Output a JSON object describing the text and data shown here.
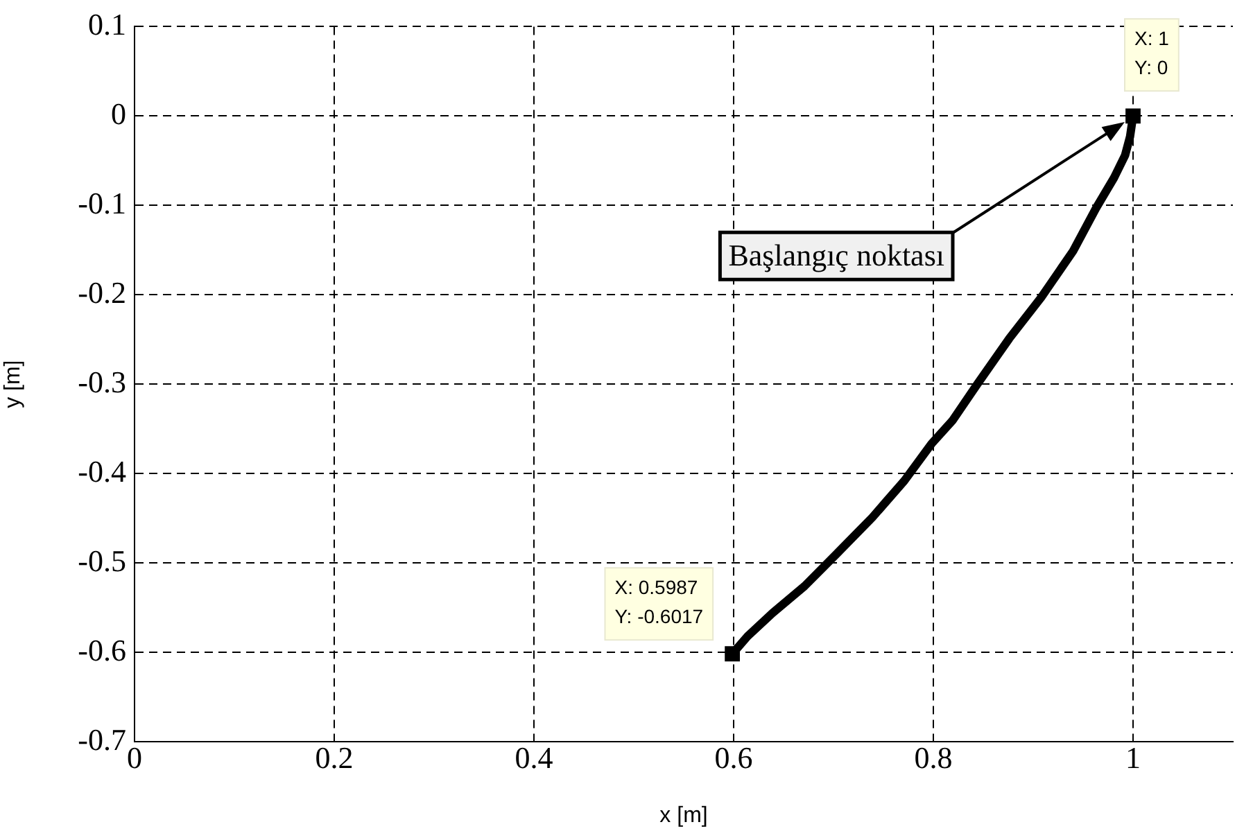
{
  "chart_data": {
    "type": "line",
    "xlabel": "x [m]",
    "ylabel": "y [m]",
    "xlim": [
      0,
      1.1
    ],
    "xticks": [
      0,
      0.2,
      0.4,
      0.6,
      0.8,
      1
    ],
    "ylim": [
      -0.7,
      0.1
    ],
    "yticks": [
      0.1,
      0,
      -0.1,
      -0.2,
      -0.3,
      -0.4,
      -0.5,
      -0.6,
      -0.7
    ],
    "grid": true,
    "legend": false,
    "series": [
      {
        "type": "line",
        "color": "#000000",
        "marker": "none",
        "line_style": "solid",
        "x": [
          1,
          0.997,
          0.992,
          0.981,
          0.963,
          0.94,
          0.908,
          0.876,
          0.844,
          0.819,
          0.798,
          0.771,
          0.739,
          0.703,
          0.671,
          0.639,
          0.614,
          0.5987
        ],
        "values": [
          0,
          -0.023,
          -0.044,
          -0.069,
          -0.103,
          -0.151,
          -0.203,
          -0.249,
          -0.3,
          -0.341,
          -0.367,
          -0.408,
          -0.449,
          -0.49,
          -0.526,
          -0.556,
          -0.582,
          -0.6017
        ]
      },
      {
        "type": "scatter",
        "color": "#000000",
        "marker": "square",
        "x": [
          1,
          0.5987
        ],
        "values": [
          0,
          -0.6017
        ]
      }
    ],
    "annotations": [
      "Başlangıç noktası",
      {
        "text": "X: 1\nY: 0",
        "x": 1,
        "y": 0
      },
      {
        "text": "X: 0.5987\nY: -0.6017",
        "x": 0.5987,
        "y": -0.6017
      }
    ]
  }
}
